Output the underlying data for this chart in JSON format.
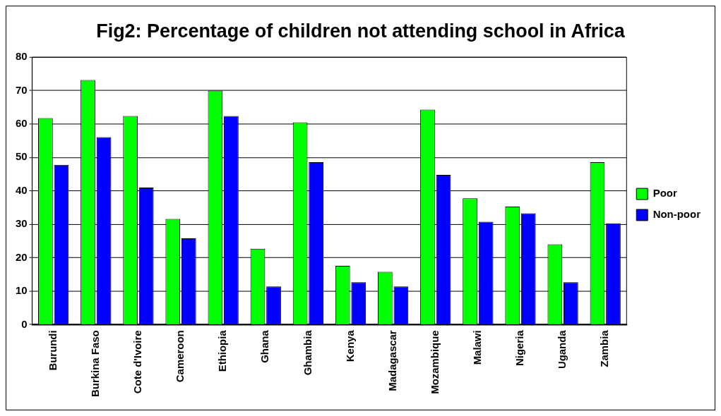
{
  "chart_data": {
    "type": "bar",
    "title": "Fig2: Percentage of children not attending school in Africa",
    "categories": [
      "Burundi",
      "Burkina Faso",
      "Cote d'Ivoire",
      "Cameroon",
      "Ethiopia",
      "Ghana",
      "Ghambia",
      "Kenya",
      "Madagascar",
      "Mozambique",
      "Malawi",
      "Nigeria",
      "Uganda",
      "Zambia"
    ],
    "series": [
      {
        "name": "Poor",
        "color": "#00ff00",
        "values": [
          61.8,
          73.2,
          62.4,
          31.6,
          70,
          22.7,
          60.5,
          17.6,
          15.8,
          64.3,
          37.8,
          35.3,
          24,
          48.6
        ]
      },
      {
        "name": "Non-poor",
        "color": "#0000ff",
        "values": [
          47.8,
          56.1,
          41,
          25.8,
          62.4,
          11.4,
          48.6,
          12.7,
          11.4,
          44.8,
          30.8,
          33.3,
          12.7,
          30.3
        ]
      }
    ],
    "ylim": [
      0,
      80
    ],
    "yticks": [
      0,
      10,
      20,
      30,
      40,
      50,
      60,
      70,
      80
    ],
    "grid": "y",
    "legend": "right"
  }
}
